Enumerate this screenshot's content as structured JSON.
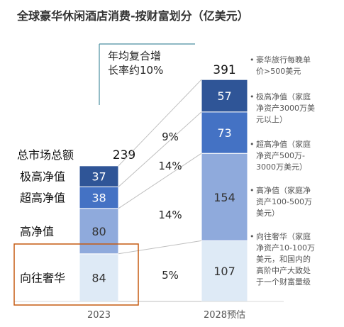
{
  "chart_data": {
    "type": "bar",
    "stacked": true,
    "title": "全球豪华休闲酒店消费-按财富划分（亿美元）",
    "categories": [
      "2023",
      "2028预估"
    ],
    "series": [
      {
        "name": "向往奢华",
        "values": [
          84,
          107
        ],
        "color": "#DEEAF6"
      },
      {
        "name": "高净值",
        "values": [
          80,
          154
        ],
        "color": "#8FAADC"
      },
      {
        "name": "超高净值",
        "values": [
          38,
          73
        ],
        "color": "#4472C4"
      },
      {
        "name": "极高净值",
        "values": [
          37,
          57
        ],
        "color": "#2F5597"
      }
    ],
    "totals": [
      239,
      391
    ],
    "total_label": "总市场总额",
    "growth_rates": [
      "5%",
      "14%",
      "14%",
      "9%"
    ],
    "cagr_note": [
      "年均复合增",
      "长率约10%"
    ],
    "right_legend": [
      [
        "豪华旅行每晚单",
        "价>500美元"
      ],
      [
        "极高净值（家庭",
        "净资产3000万美",
        "元以上）"
      ],
      [
        "超高净值（家庭",
        "净资产500万-",
        "3000万美元）"
      ],
      [
        "高净值（家庭净",
        "资产100-500万",
        "美元）"
      ],
      [
        "向往奢华（家庭",
        "净资产10-100万",
        "美元，和国内的",
        "高阶中产大致处",
        "于一个财富量级"
      ]
    ],
    "highlight": "向往奢华",
    "colors": {
      "label_dark": "#ffffff",
      "label_light": "#333333",
      "callout": "#4B8FA0",
      "highlight": "#C55A11",
      "connector": "#BFBFBF"
    }
  }
}
